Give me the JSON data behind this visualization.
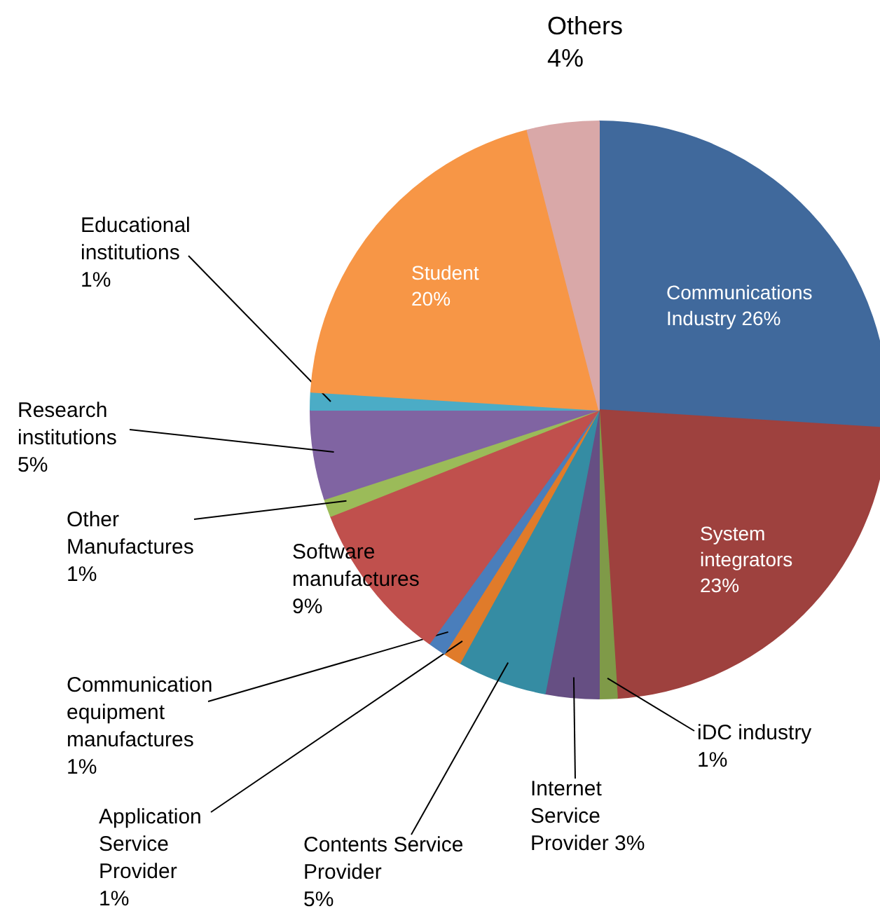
{
  "chart_data": {
    "type": "pie",
    "categories": [
      "Communications Industry",
      "System integrators",
      "iDC industry",
      "Internet Service Provider",
      "Contents Service Provider",
      "Application Service Provider",
      "Communication equipment manufactures",
      "Software manufactures",
      "Other Manufactures",
      "Research institutions",
      "Educational institutions",
      "Student",
      "Others"
    ],
    "values": [
      26,
      23,
      1,
      3,
      5,
      1,
      1,
      9,
      1,
      5,
      1,
      20,
      4
    ],
    "value_labels": [
      "26%",
      "23%",
      "1%",
      "3%",
      "5%",
      "1%",
      "1%",
      "9%",
      "1%",
      "5%",
      "1%",
      "20%",
      "4%"
    ],
    "colors": [
      "#40699c",
      "#9e413e",
      "#7f9a48",
      "#664f83",
      "#358ca3",
      "#e07b2a",
      "#4a7ebb",
      "#c0504d",
      "#9bbb59",
      "#8064a2",
      "#4bacc6",
      "#f79646",
      "#d9a8a8"
    ],
    "legend": false
  }
}
